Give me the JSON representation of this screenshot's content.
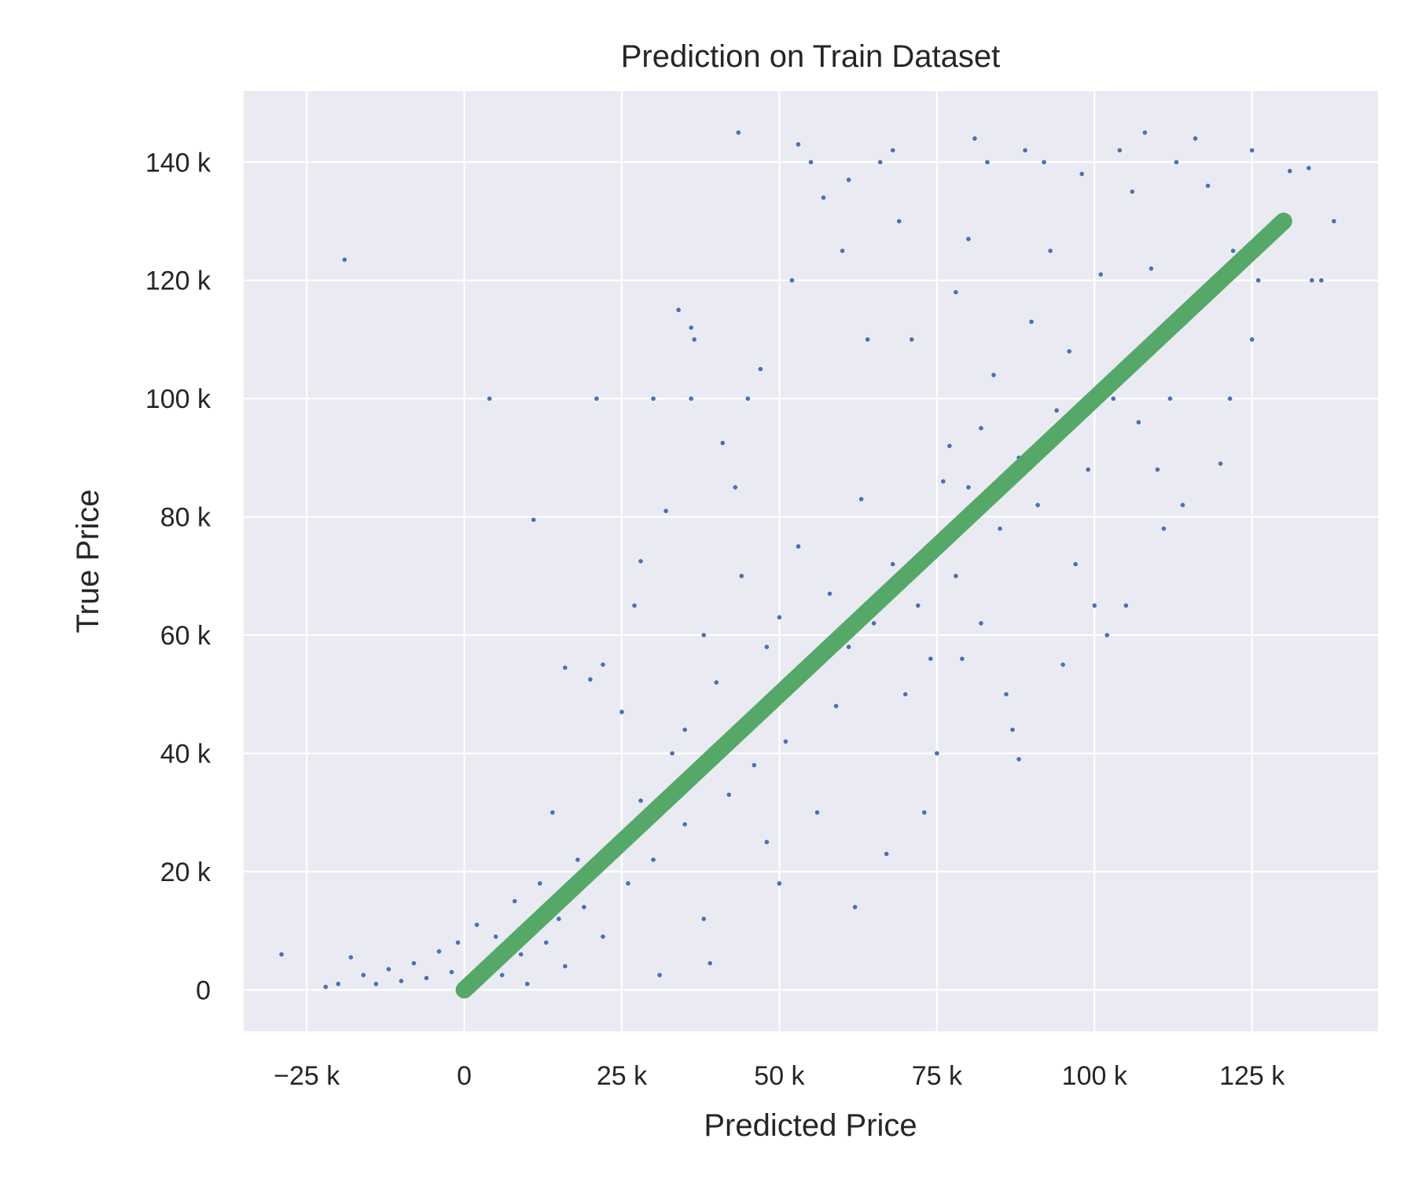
{
  "chart_data": {
    "type": "scatter",
    "title": "Prediction on Train Dataset",
    "xlabel": "Predicted Price",
    "ylabel": "True Price",
    "xlim": [
      -35000,
      145000
    ],
    "ylim": [
      -7000,
      152000
    ],
    "x_ticks": [
      {
        "value": -25000,
        "label": "−25 k"
      },
      {
        "value": 0,
        "label": "0"
      },
      {
        "value": 25000,
        "label": "25 k"
      },
      {
        "value": 50000,
        "label": "50 k"
      },
      {
        "value": 75000,
        "label": "75 k"
      },
      {
        "value": 100000,
        "label": "100 k"
      },
      {
        "value": 125000,
        "label": "125 k"
      }
    ],
    "y_ticks": [
      {
        "value": 0,
        "label": "0"
      },
      {
        "value": 20000,
        "label": "20 k"
      },
      {
        "value": 40000,
        "label": "40 k"
      },
      {
        "value": 60000,
        "label": "60 k"
      },
      {
        "value": 80000,
        "label": "80 k"
      },
      {
        "value": 100000,
        "label": "100 k"
      },
      {
        "value": 120000,
        "label": "120 k"
      },
      {
        "value": 140000,
        "label": "140 k"
      }
    ],
    "grid": true,
    "series": [
      {
        "kind": "scatter",
        "color": "#4c72b0",
        "points": [
          [
            -29000,
            6000
          ],
          [
            -19000,
            123500
          ],
          [
            -20000,
            1000
          ],
          [
            -22000,
            500
          ],
          [
            -18000,
            5500
          ],
          [
            -16000,
            2500
          ],
          [
            -14000,
            1000
          ],
          [
            -12000,
            3500
          ],
          [
            -10000,
            1500
          ],
          [
            -8000,
            4500
          ],
          [
            -6000,
            2000
          ],
          [
            -4000,
            6500
          ],
          [
            -2000,
            3000
          ],
          [
            -1000,
            8000
          ],
          [
            1000,
            1500
          ],
          [
            2000,
            11000
          ],
          [
            3000,
            4000
          ],
          [
            4000,
            100000
          ],
          [
            5000,
            9000
          ],
          [
            6000,
            2500
          ],
          [
            8000,
            15000
          ],
          [
            9000,
            6000
          ],
          [
            10000,
            1000
          ],
          [
            11000,
            79500
          ],
          [
            12000,
            18000
          ],
          [
            13000,
            8000
          ],
          [
            14000,
            30000
          ],
          [
            15000,
            12000
          ],
          [
            16000,
            54500
          ],
          [
            16000,
            4000
          ],
          [
            18000,
            22000
          ],
          [
            19000,
            14000
          ],
          [
            20000,
            52500
          ],
          [
            21000,
            100000
          ],
          [
            22000,
            55000
          ],
          [
            22000,
            9000
          ],
          [
            24000,
            25000
          ],
          [
            25000,
            47000
          ],
          [
            26000,
            18000
          ],
          [
            27000,
            65000
          ],
          [
            28000,
            72500
          ],
          [
            28000,
            32000
          ],
          [
            30000,
            100000
          ],
          [
            30000,
            22000
          ],
          [
            31000,
            2500
          ],
          [
            32000,
            81000
          ],
          [
            33000,
            40000
          ],
          [
            34000,
            115000
          ],
          [
            35000,
            44000
          ],
          [
            35000,
            28000
          ],
          [
            36000,
            100000
          ],
          [
            36000,
            112000
          ],
          [
            36500,
            110000
          ],
          [
            37000,
            36000
          ],
          [
            38000,
            60000
          ],
          [
            38000,
            12000
          ],
          [
            39000,
            4500
          ],
          [
            40000,
            52000
          ],
          [
            41000,
            92500
          ],
          [
            42000,
            33000
          ],
          [
            43000,
            85000
          ],
          [
            43500,
            145000
          ],
          [
            44000,
            70000
          ],
          [
            45000,
            100000
          ],
          [
            45000,
            45000
          ],
          [
            46000,
            38000
          ],
          [
            47000,
            105000
          ],
          [
            48000,
            58000
          ],
          [
            48000,
            25000
          ],
          [
            50000,
            63000
          ],
          [
            50000,
            18000
          ],
          [
            51000,
            42000
          ],
          [
            52000,
            120000
          ],
          [
            53000,
            143000
          ],
          [
            53000,
            75000
          ],
          [
            55000,
            140000
          ],
          [
            55000,
            54000
          ],
          [
            56000,
            30000
          ],
          [
            57000,
            134000
          ],
          [
            58000,
            67000
          ],
          [
            59000,
            48000
          ],
          [
            60000,
            125000
          ],
          [
            61000,
            137000
          ],
          [
            61000,
            58000
          ],
          [
            62000,
            14000
          ],
          [
            63000,
            83000
          ],
          [
            64000,
            110000
          ],
          [
            65000,
            62000
          ],
          [
            66000,
            140000
          ],
          [
            67000,
            23000
          ],
          [
            68000,
            142000
          ],
          [
            68000,
            72000
          ],
          [
            69000,
            130000
          ],
          [
            70000,
            50000
          ],
          [
            71000,
            110000
          ],
          [
            72000,
            65000
          ],
          [
            73000,
            30000
          ],
          [
            74000,
            56000
          ],
          [
            75000,
            40000
          ],
          [
            76000,
            86000
          ],
          [
            77000,
            92000
          ],
          [
            78000,
            118000
          ],
          [
            78000,
            70000
          ],
          [
            79000,
            56000
          ],
          [
            80000,
            127000
          ],
          [
            80000,
            85000
          ],
          [
            81000,
            144000
          ],
          [
            82000,
            95000
          ],
          [
            82000,
            62000
          ],
          [
            83000,
            140000
          ],
          [
            84000,
            104000
          ],
          [
            85000,
            78000
          ],
          [
            86000,
            50000
          ],
          [
            87000,
            44000
          ],
          [
            88000,
            39000
          ],
          [
            88000,
            90000
          ],
          [
            89000,
            142000
          ],
          [
            90000,
            113000
          ],
          [
            91000,
            82000
          ],
          [
            92000,
            140000
          ],
          [
            93000,
            125000
          ],
          [
            94000,
            98000
          ],
          [
            95000,
            55000
          ],
          [
            96000,
            108000
          ],
          [
            97000,
            72000
          ],
          [
            98000,
            138000
          ],
          [
            99000,
            88000
          ],
          [
            100000,
            65000
          ],
          [
            101000,
            121000
          ],
          [
            102000,
            60000
          ],
          [
            103000,
            100000
          ],
          [
            104000,
            142000
          ],
          [
            105000,
            65000
          ],
          [
            106000,
            135000
          ],
          [
            107000,
            96000
          ],
          [
            108000,
            145000
          ],
          [
            109000,
            122000
          ],
          [
            110000,
            88000
          ],
          [
            111000,
            78000
          ],
          [
            112000,
            100000
          ],
          [
            113000,
            140000
          ],
          [
            114000,
            82000
          ],
          [
            116000,
            144000
          ],
          [
            118000,
            136000
          ],
          [
            120000,
            89000
          ],
          [
            121000,
            120000
          ],
          [
            121500,
            100000
          ],
          [
            122000,
            125000
          ],
          [
            125000,
            142000
          ],
          [
            125000,
            110000
          ],
          [
            126000,
            120000
          ],
          [
            131000,
            138500
          ],
          [
            134000,
            139000
          ],
          [
            134500,
            120000
          ],
          [
            136000,
            120000
          ],
          [
            138000,
            130000
          ]
        ]
      },
      {
        "kind": "line",
        "color": "#55a868",
        "points": [
          [
            0,
            0
          ],
          [
            130000,
            130000
          ]
        ]
      }
    ]
  }
}
